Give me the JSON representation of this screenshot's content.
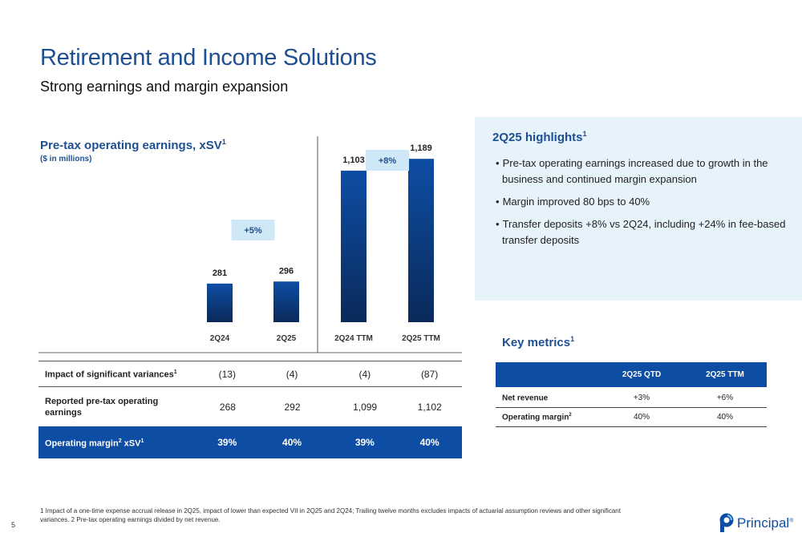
{
  "header": {
    "title": "Retirement and Income Solutions",
    "subtitle": "Strong earnings and margin expansion"
  },
  "chart_data": {
    "type": "bar",
    "title": "Pre-tax operating earnings, xSV",
    "title_sup": "1",
    "subtitle": "($ in millions)",
    "categories": [
      "2Q24",
      "2Q25",
      "2Q24 TTM",
      "2Q25 TTM"
    ],
    "values": [
      281,
      296,
      1103,
      1189
    ],
    "value_labels": [
      "281",
      "296",
      "1,103",
      "1,189"
    ],
    "ylim": [
      0,
      1400
    ],
    "grid": false,
    "bar_color_top": "#0e4da4",
    "bar_color_bottom": "#0a2a5a",
    "growth_labels": [
      "+5%",
      "+8%"
    ],
    "growth_badge_color": "#cfe8f7"
  },
  "table": {
    "rows": [
      {
        "label": "Impact of significant variances",
        "sup": "1",
        "cells": [
          "(13)",
          "(4)",
          "(4)",
          "(87)"
        ]
      },
      {
        "label": "Reported pre-tax operating earnings",
        "sup": "",
        "cells": [
          "268",
          "292",
          "1,099",
          "1,102"
        ]
      },
      {
        "label": "Operating margin",
        "sup": "2",
        "label_suffix": " xSV",
        "suffix_sup": "1",
        "cells": [
          "39%",
          "40%",
          "39%",
          "40%"
        ]
      }
    ]
  },
  "highlights": {
    "title": "2Q25 highlights",
    "title_sup": "1",
    "items": [
      "Pre-tax operating earnings increased due to growth in the business and continued margin expansion",
      "Margin improved 80 bps to 40%",
      "Transfer deposits +8% vs 2Q24, including +24% in fee-based transfer deposits"
    ]
  },
  "key_metrics": {
    "title": "Key metrics",
    "title_sup": "1",
    "columns": [
      "2Q25 QTD",
      "2Q25 TTM"
    ],
    "rows": [
      {
        "label": "Net revenue",
        "sup": "",
        "cells": [
          "+3%",
          "+6%"
        ]
      },
      {
        "label": "Operating margin",
        "sup": "2",
        "cells": [
          "40%",
          "40%"
        ]
      }
    ]
  },
  "footnote": "1 Impact of a one-time expense accrual release in 2Q25, impact of lower than expected VII in 2Q25 and 2Q24; Trailing twelve months excludes impacts of actuarial assumption reviews and other significant variances. 2 Pre-tax operating earnings divided by net revenue.",
  "page_number": "5",
  "logo": {
    "text": "Principal",
    "reg": "®"
  },
  "colors": {
    "brand_blue": "#1d4f91",
    "accent_blue": "#0e4da4",
    "panel_bg": "#e7f3fb"
  }
}
